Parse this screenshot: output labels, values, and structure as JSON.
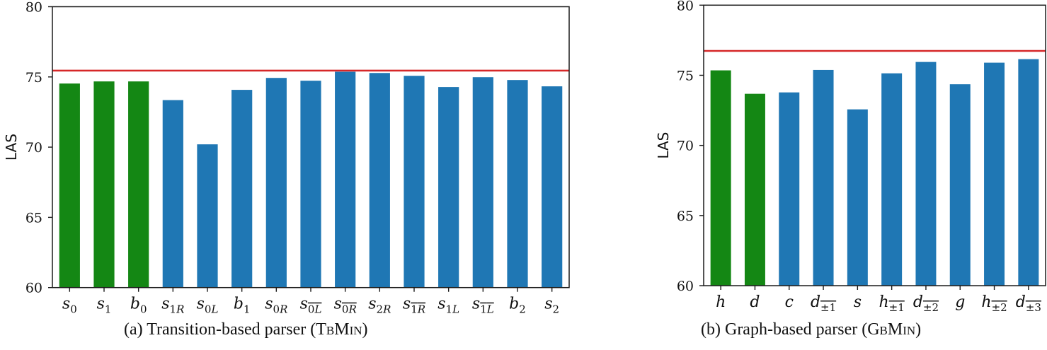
{
  "chart_data": [
    {
      "type": "bar",
      "title": "",
      "caption_prefix": "(a) Transition-based parser (",
      "caption_model": "TbMin",
      "caption_suffix": ")",
      "xlabel": "",
      "ylabel": "LAS",
      "ylim": [
        60,
        80
      ],
      "yticks": [
        60,
        65,
        70,
        75,
        80
      ],
      "grid": false,
      "categories": [
        "s_0",
        "s_1",
        "b_0",
        "s_1R",
        "s_0L",
        "b_1",
        "s_0R",
        "s_0L̄",
        "s_0R̄",
        "s_2R",
        "s_1R̄",
        "s_1L",
        "s_1L̄",
        "b_2",
        "s_2"
      ],
      "labels": [
        {
          "base": "s",
          "sub": "0",
          "bar": ""
        },
        {
          "base": "s",
          "sub": "1",
          "bar": ""
        },
        {
          "base": "b",
          "sub": "0",
          "bar": ""
        },
        {
          "base": "s",
          "sub": "1",
          "subit": "R",
          "bar": ""
        },
        {
          "base": "s",
          "sub": "0",
          "subit": "L",
          "bar": ""
        },
        {
          "base": "b",
          "sub": "1",
          "bar": ""
        },
        {
          "base": "s",
          "sub": "0",
          "subit": "R",
          "bar": ""
        },
        {
          "base": "s",
          "sub": "0",
          "subit": "L",
          "bar": "over"
        },
        {
          "base": "s",
          "sub": "0",
          "subit": "R",
          "bar": "over"
        },
        {
          "base": "s",
          "sub": "2",
          "subit": "R",
          "bar": ""
        },
        {
          "base": "s",
          "sub": "1",
          "subit": "R",
          "bar": "over"
        },
        {
          "base": "s",
          "sub": "1",
          "subit": "L",
          "bar": ""
        },
        {
          "base": "s",
          "sub": "1",
          "subit": "L",
          "bar": "over"
        },
        {
          "base": "b",
          "sub": "2",
          "bar": ""
        },
        {
          "base": "s",
          "sub": "2",
          "bar": ""
        }
      ],
      "values": [
        74.53,
        74.68,
        74.68,
        73.35,
        70.2,
        74.08,
        74.93,
        74.73,
        75.37,
        75.28,
        75.08,
        74.28,
        74.98,
        74.78,
        74.33
      ],
      "bar_colors": [
        "green",
        "green",
        "green",
        "blue",
        "blue",
        "blue",
        "blue",
        "blue",
        "blue",
        "blue",
        "blue",
        "blue",
        "blue",
        "blue",
        "blue"
      ],
      "reference_line": {
        "value": 75.45,
        "color": "#d62728"
      }
    },
    {
      "type": "bar",
      "title": "",
      "caption_prefix": "(b) Graph-based parser (",
      "caption_model": "GbMin",
      "caption_suffix": ")",
      "xlabel": "",
      "ylabel": "LAS",
      "ylim": [
        60,
        80
      ],
      "yticks": [
        60,
        65,
        70,
        75,
        80
      ],
      "grid": false,
      "categories": [
        "h",
        "d",
        "c",
        "d_±1",
        "s",
        "h_±1",
        "d_±2",
        "g",
        "h_±2",
        "d_±3"
      ],
      "labels": [
        {
          "base": "h",
          "sub": "",
          "bar": ""
        },
        {
          "base": "d",
          "sub": "",
          "bar": ""
        },
        {
          "base": "c",
          "sub": "",
          "bar": ""
        },
        {
          "base": "d",
          "sub": "±1",
          "bar": "over"
        },
        {
          "base": "s",
          "sub": "",
          "bar": ""
        },
        {
          "base": "h",
          "sub": "±1",
          "bar": "over"
        },
        {
          "base": "d",
          "sub": "±2",
          "bar": "over"
        },
        {
          "base": "g",
          "sub": "",
          "bar": ""
        },
        {
          "base": "h",
          "sub": "±2",
          "bar": "over"
        },
        {
          "base": "d",
          "sub": "±3",
          "bar": "over"
        }
      ],
      "values": [
        75.35,
        73.68,
        73.78,
        75.38,
        72.57,
        75.14,
        75.95,
        74.36,
        75.9,
        76.15
      ],
      "bar_colors": [
        "green",
        "green",
        "blue",
        "blue",
        "blue",
        "blue",
        "blue",
        "blue",
        "blue",
        "blue"
      ],
      "reference_line": {
        "value": 76.74,
        "color": "#d62728"
      }
    }
  ],
  "colors": {
    "green": "#148714",
    "blue": "#1f77b4",
    "reference": "#d62728",
    "axis": "#1a1a1a"
  },
  "captions": {
    "a": {
      "prefix": "(a) Transition-based parser (",
      "model": "TbMin",
      "suffix": ")"
    },
    "b": {
      "prefix": "(b) Graph-based parser (",
      "model": "GbMin",
      "suffix": ")"
    }
  }
}
